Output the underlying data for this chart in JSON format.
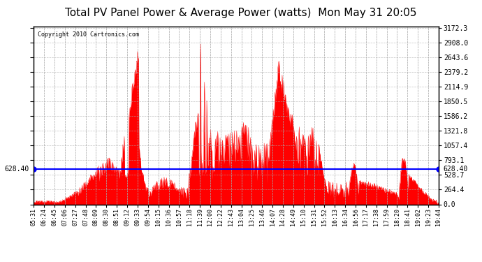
{
  "title": "Total PV Panel Power & Average Power (watts)  Mon May 31 20:05",
  "copyright": "Copyright 2010 Cartronics.com",
  "average_power": 628.4,
  "y_max": 3172.3,
  "y_ticks": [
    0.0,
    264.4,
    528.7,
    793.1,
    1057.4,
    1321.8,
    1586.2,
    1850.5,
    2114.9,
    2379.2,
    2643.6,
    2908.0,
    3172.3
  ],
  "x_labels": [
    "05:31",
    "06:24",
    "06:45",
    "07:06",
    "07:27",
    "07:48",
    "08:09",
    "08:30",
    "08:51",
    "09:12",
    "09:33",
    "09:54",
    "10:15",
    "10:36",
    "10:57",
    "11:18",
    "11:39",
    "12:00",
    "12:22",
    "12:43",
    "13:04",
    "13:25",
    "13:46",
    "14:07",
    "14:28",
    "14:49",
    "15:10",
    "15:31",
    "15:52",
    "16:13",
    "16:34",
    "16:56",
    "17:17",
    "17:38",
    "17:59",
    "18:20",
    "18:41",
    "19:02",
    "19:23",
    "19:44"
  ],
  "background_color": "#ffffff",
  "plot_bg_color": "#ffffff",
  "bar_color": "#ff0000",
  "avg_line_color": "#0000ff",
  "grid_color": "#aaaaaa",
  "title_color": "#000000",
  "border_color": "#000000"
}
